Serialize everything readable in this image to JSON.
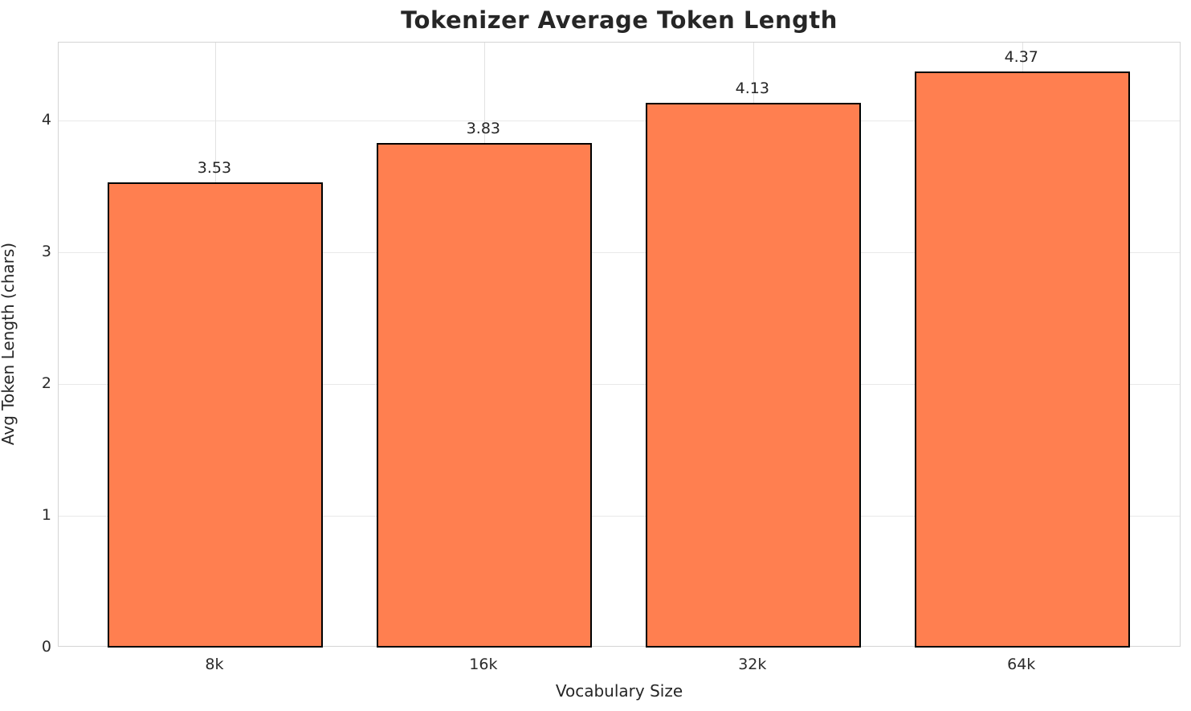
{
  "chart_data": {
    "type": "bar",
    "title": "Tokenizer Average Token Length",
    "xlabel": "Vocabulary Size",
    "ylabel": "Avg Token Length (chars)",
    "categories": [
      "8k",
      "16k",
      "32k",
      "64k"
    ],
    "values": [
      3.53,
      3.83,
      4.13,
      4.37
    ],
    "value_labels": [
      "3.53",
      "3.83",
      "4.13",
      "4.37"
    ],
    "yticks": [
      "0",
      "1",
      "2",
      "3",
      "4"
    ],
    "ylim": [
      0,
      4.59
    ],
    "xlim": [
      -0.582,
      3.592
    ],
    "bar_width_units": 0.8,
    "grid": true,
    "legend": "none",
    "bar_color": "#FF7F50",
    "bar_edge_color": "#000000",
    "grid_color": "#e9e9e9",
    "text_color": "#262626"
  }
}
